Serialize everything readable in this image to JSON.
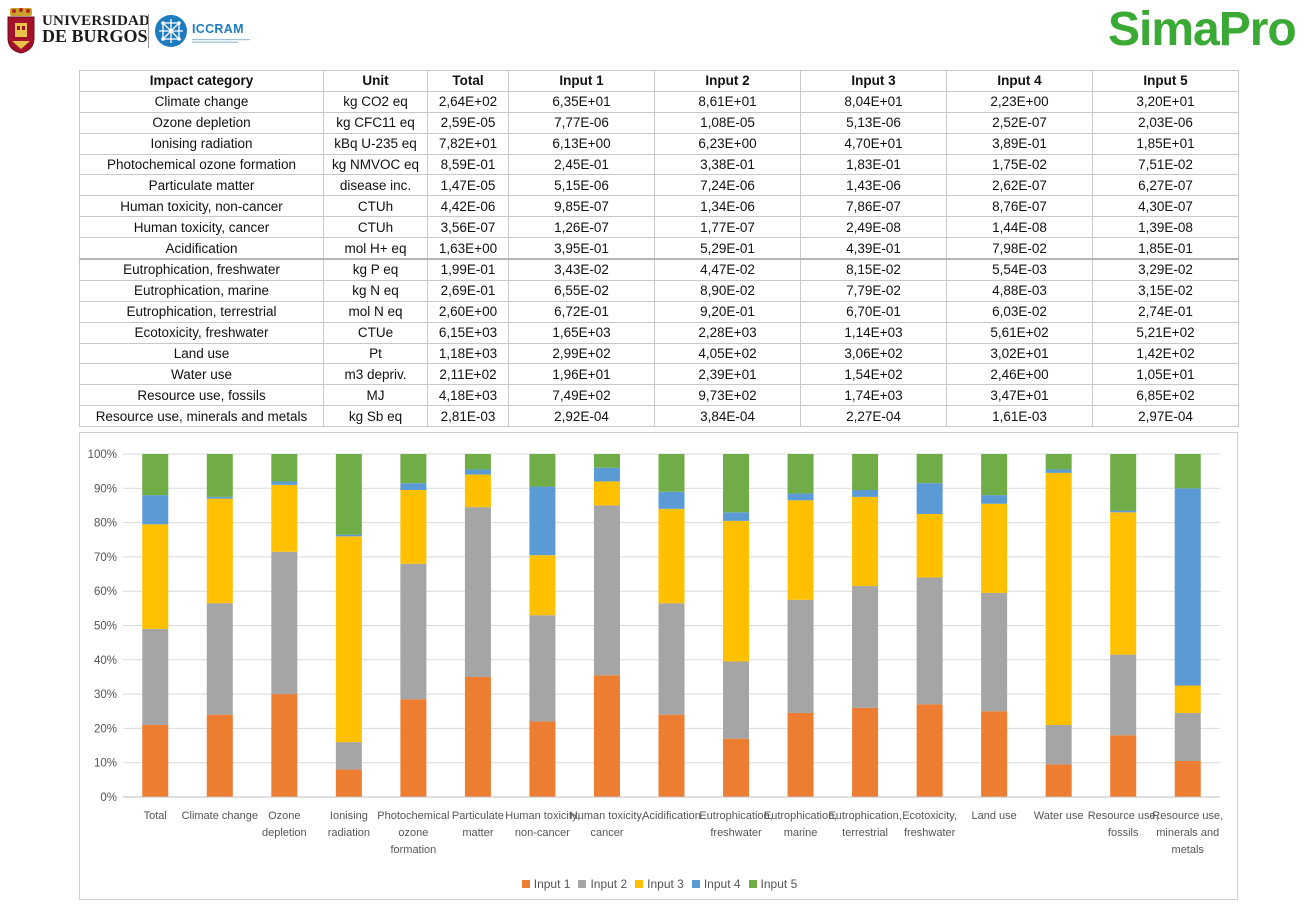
{
  "header": {
    "ubu_line1": "UNIVERSIDAD",
    "ubu_line2": "DE BURGOS",
    "iccram_name": "ICCRAM",
    "simapro": "SimaPro"
  },
  "colors": {
    "input1": "#ED7D31",
    "input2": "#A5A5A5",
    "input3": "#FFC000",
    "input4": "#5B9BD5",
    "input5": "#70AD47",
    "brand_green": "#3aa935",
    "iccram_blue": "#1f7bbf"
  },
  "table": {
    "headers": [
      "Impact category",
      "Unit",
      "Total",
      "Input 1",
      "Input 2",
      "Input 3",
      "Input 4",
      "Input 5"
    ],
    "rows": [
      [
        "Climate change",
        "kg CO2 eq",
        "2,64E+02",
        "6,35E+01",
        "8,61E+01",
        "8,04E+01",
        "2,23E+00",
        "3,20E+01"
      ],
      [
        "Ozone depletion",
        "kg CFC11 eq",
        "2,59E-05",
        "7,77E-06",
        "1,08E-05",
        "5,13E-06",
        "2,52E-07",
        "2,03E-06"
      ],
      [
        "Ionising radiation",
        "kBq U-235 eq",
        "7,82E+01",
        "6,13E+00",
        "6,23E+00",
        "4,70E+01",
        "3,89E-01",
        "1,85E+01"
      ],
      [
        "Photochemical ozone formation",
        "kg NMVOC eq",
        "8,59E-01",
        "2,45E-01",
        "3,38E-01",
        "1,83E-01",
        "1,75E-02",
        "7,51E-02"
      ],
      [
        "Particulate matter",
        "disease inc.",
        "1,47E-05",
        "5,15E-06",
        "7,24E-06",
        "1,43E-06",
        "2,62E-07",
        "6,27E-07"
      ],
      [
        "Human toxicity, non-cancer",
        "CTUh",
        "4,42E-06",
        "9,85E-07",
        "1,34E-06",
        "7,86E-07",
        "8,76E-07",
        "4,30E-07"
      ],
      [
        "Human toxicity, cancer",
        "CTUh",
        "3,56E-07",
        "1,26E-07",
        "1,77E-07",
        "2,49E-08",
        "1,44E-08",
        "1,39E-08"
      ],
      [
        "Acidification",
        "mol H+ eq",
        "1,63E+00",
        "3,95E-01",
        "5,29E-01",
        "4,39E-01",
        "7,98E-02",
        "1,85E-01"
      ],
      [
        "Eutrophication, freshwater",
        "kg P eq",
        "1,99E-01",
        "3,43E-02",
        "4,47E-02",
        "8,15E-02",
        "5,54E-03",
        "3,29E-02"
      ],
      [
        "Eutrophication, marine",
        "kg N eq",
        "2,69E-01",
        "6,55E-02",
        "8,90E-02",
        "7,79E-02",
        "4,88E-03",
        "3,15E-02"
      ],
      [
        "Eutrophication, terrestrial",
        "mol N eq",
        "2,60E+00",
        "6,72E-01",
        "9,20E-01",
        "6,70E-01",
        "6,03E-02",
        "2,74E-01"
      ],
      [
        "Ecotoxicity, freshwater",
        "CTUe",
        "6,15E+03",
        "1,65E+03",
        "2,28E+03",
        "1,14E+03",
        "5,61E+02",
        "5,21E+02"
      ],
      [
        "Land use",
        "Pt",
        "1,18E+03",
        "2,99E+02",
        "4,05E+02",
        "3,06E+02",
        "3,02E+01",
        "1,42E+02"
      ],
      [
        "Water use",
        "m3 depriv.",
        "2,11E+02",
        "1,96E+01",
        "2,39E+01",
        "1,54E+02",
        "2,46E+00",
        "1,05E+01"
      ],
      [
        "Resource use, fossils",
        "MJ",
        "4,18E+03",
        "7,49E+02",
        "9,73E+02",
        "1,74E+03",
        "3,47E+01",
        "6,85E+02"
      ],
      [
        "Resource use, minerals and metals",
        "kg Sb eq",
        "2,81E-03",
        "2,92E-04",
        "3,84E-04",
        "2,27E-04",
        "1,61E-03",
        "2,97E-04"
      ]
    ]
  },
  "chart_data": {
    "type": "bar",
    "stacked": true,
    "ylim": [
      0,
      100
    ],
    "y_ticks": [
      "0%",
      "10%",
      "20%",
      "30%",
      "40%",
      "50%",
      "60%",
      "70%",
      "80%",
      "90%",
      "100%"
    ],
    "categories": [
      [
        "Total"
      ],
      [
        "Climate change"
      ],
      [
        "Ozone",
        "depletion"
      ],
      [
        "Ionising",
        "radiation"
      ],
      [
        "Photochemical",
        "ozone",
        "formation"
      ],
      [
        "Particulate",
        "matter"
      ],
      [
        "Human toxicity,",
        "non-cancer"
      ],
      [
        "Human toxicity,",
        "cancer"
      ],
      [
        "Acidification"
      ],
      [
        "Eutrophication,",
        "freshwater"
      ],
      [
        "Eutrophication,",
        "marine"
      ],
      [
        "Eutrophication,",
        "terrestrial"
      ],
      [
        "Ecotoxicity,",
        "freshwater"
      ],
      [
        "Land use"
      ],
      [
        "Water use"
      ],
      [
        "Resource use,",
        "fossils"
      ],
      [
        "Resource use,",
        "minerals and",
        "metals"
      ]
    ],
    "series": [
      {
        "name": "Input 1",
        "color": "#ED7D31",
        "values": [
          21,
          24,
          30,
          8,
          28.5,
          35,
          22,
          35.5,
          24,
          17,
          24.5,
          26,
          27,
          25,
          9.5,
          18,
          10.5
        ]
      },
      {
        "name": "Input 2",
        "color": "#A5A5A5",
        "values": [
          28,
          32.5,
          41.5,
          8,
          39.5,
          49.5,
          31,
          49.5,
          32.5,
          22.5,
          33,
          35.5,
          37,
          34.5,
          11.5,
          23.5,
          14
        ]
      },
      {
        "name": "Input 3",
        "color": "#FFC000",
        "values": [
          30.5,
          30.5,
          19.5,
          60,
          21.5,
          9.5,
          17.5,
          7,
          27.5,
          41,
          29,
          26,
          18.5,
          26,
          73.5,
          41.5,
          8
        ]
      },
      {
        "name": "Input 4",
        "color": "#5B9BD5",
        "values": [
          8.5,
          0.5,
          1,
          0.5,
          2,
          1.5,
          20,
          4,
          5,
          2.5,
          2,
          2,
          9,
          2.5,
          1,
          0.5,
          57.5
        ]
      },
      {
        "name": "Input 5",
        "color": "#70AD47",
        "values": [
          12,
          12.5,
          8,
          23.5,
          8.5,
          4.5,
          9.5,
          4,
          11,
          17,
          11.5,
          10.5,
          8.5,
          12,
          4.5,
          16.5,
          10
        ]
      }
    ],
    "legend_position": "bottom",
    "grid": true
  }
}
